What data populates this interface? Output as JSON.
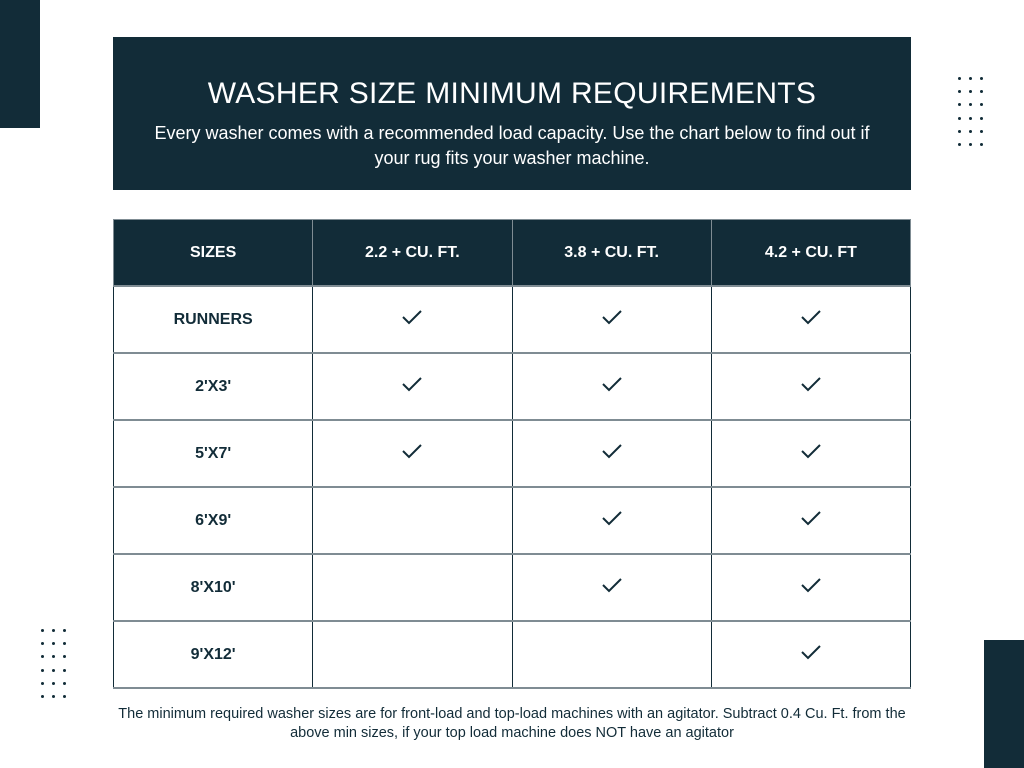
{
  "colors": {
    "primary": "#122c38",
    "border": "#7f8c93",
    "background": "#ffffff"
  },
  "banner": {
    "title": "WASHER SIZE MINIMUM REQUIREMENTS",
    "subtitle": "Every washer comes with a recommended load capacity. Use the chart below to find out if your rug fits your washer machine."
  },
  "table": {
    "headers": [
      "SIZES",
      "2.2 + CU. FT.",
      "3.8 + CU. FT.",
      "4.2 + CU. FT"
    ],
    "rows": [
      {
        "size": "RUNNERS",
        "checks": [
          true,
          true,
          true
        ]
      },
      {
        "size": "2'X3'",
        "checks": [
          true,
          true,
          true
        ]
      },
      {
        "size": "5'X7'",
        "checks": [
          true,
          true,
          true
        ]
      },
      {
        "size": "6'X9'",
        "checks": [
          false,
          true,
          true
        ]
      },
      {
        "size": "8'X10'",
        "checks": [
          false,
          true,
          true
        ]
      },
      {
        "size": "9'X12'",
        "checks": [
          false,
          false,
          true
        ]
      }
    ],
    "check_icon": "checkmark-icon"
  },
  "footnote": "The minimum required washer sizes are for front-load and top-load machines with an agitator. Subtract 0.4 Cu. Ft. from the above min sizes, if your top load machine does NOT have an agitator"
}
